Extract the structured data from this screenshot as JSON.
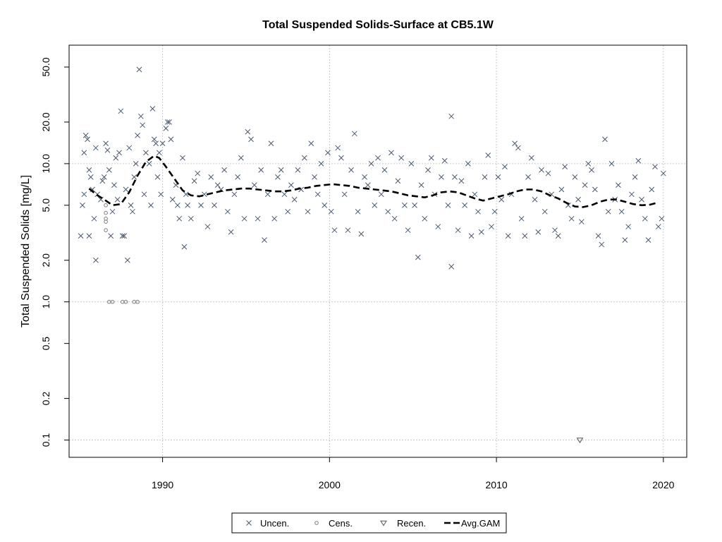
{
  "chart_data": {
    "type": "scatter",
    "title": "Total Suspended Solids-Surface at CB5.1W",
    "xlabel": "",
    "ylabel": "Total Suspended Solids [mg/L]",
    "xlim": [
      1984.4,
      2021.4
    ],
    "ylim": [
      0.075,
      72
    ],
    "y_scale": "log",
    "x_ticks": [
      1990,
      2000,
      2010,
      2020
    ],
    "x_tick_labels": [
      "1990",
      "2000",
      "2010",
      "2020"
    ],
    "y_ticks": [
      0.1,
      0.2,
      0.5,
      1.0,
      2.0,
      5.0,
      10.0,
      20.0,
      50.0
    ],
    "y_tick_labels": [
      "0.1",
      "0.2",
      "0.5",
      "1.0",
      "2.0",
      "5.0",
      "10.0",
      "20.0",
      "50.0"
    ],
    "grid": true,
    "legend_placement": "bottom-outside",
    "colors": {
      "uncen": "#4a5a6e",
      "cens": "#7a7a7a",
      "recen": "#555555",
      "gam": "#000000",
      "grid": "#c8c8c8"
    },
    "series": [
      {
        "name": "Uncen.",
        "marker": "x",
        "points": [
          [
            1985.1,
            3.0
          ],
          [
            1985.2,
            5.0
          ],
          [
            1985.3,
            6.0
          ],
          [
            1985.3,
            12.0
          ],
          [
            1985.4,
            16.0
          ],
          [
            1985.5,
            15.0
          ],
          [
            1985.6,
            3.0
          ],
          [
            1985.6,
            9.0
          ],
          [
            1985.7,
            8.0
          ],
          [
            1985.8,
            6.5
          ],
          [
            1985.9,
            4.0
          ],
          [
            1986.0,
            2.0
          ],
          [
            1986.0,
            13.0
          ],
          [
            1986.1,
            6.0
          ],
          [
            1986.3,
            5.5
          ],
          [
            1986.4,
            7.5
          ],
          [
            1986.5,
            8.0
          ],
          [
            1986.6,
            14.0
          ],
          [
            1986.7,
            12.5
          ],
          [
            1986.8,
            9.0
          ],
          [
            1986.9,
            3.0
          ],
          [
            1987.0,
            4.5
          ],
          [
            1987.1,
            7.0
          ],
          [
            1987.2,
            11.0
          ],
          [
            1987.3,
            5.5
          ],
          [
            1987.4,
            12.0
          ],
          [
            1987.5,
            24.0
          ],
          [
            1987.6,
            3.0
          ],
          [
            1987.7,
            3.0
          ],
          [
            1987.8,
            6.5
          ],
          [
            1987.9,
            2.0
          ],
          [
            1988.0,
            13.0
          ],
          [
            1988.1,
            5.0
          ],
          [
            1988.2,
            4.5
          ],
          [
            1988.3,
            8.0
          ],
          [
            1988.4,
            10.0
          ],
          [
            1988.5,
            16.0
          ],
          [
            1988.6,
            48.0
          ],
          [
            1988.7,
            22.0
          ],
          [
            1988.8,
            19.0
          ],
          [
            1988.9,
            6.0
          ],
          [
            1989.0,
            12.0
          ],
          [
            1989.2,
            10.0
          ],
          [
            1989.3,
            5.0
          ],
          [
            1989.4,
            25.0
          ],
          [
            1989.5,
            15.0
          ],
          [
            1989.6,
            14.0
          ],
          [
            1989.7,
            8.0
          ],
          [
            1989.8,
            12.0
          ],
          [
            1989.9,
            6.0
          ],
          [
            1990.0,
            14.0
          ],
          [
            1990.2,
            18.0
          ],
          [
            1990.3,
            20.0
          ],
          [
            1990.4,
            20.0
          ],
          [
            1990.5,
            15.0
          ],
          [
            1990.6,
            5.5
          ],
          [
            1990.8,
            7.0
          ],
          [
            1990.9,
            5.0
          ],
          [
            1991.0,
            4.0
          ],
          [
            1991.2,
            11.0
          ],
          [
            1991.3,
            2.5
          ],
          [
            1991.4,
            6.0
          ],
          [
            1991.5,
            5.0
          ],
          [
            1991.7,
            4.0
          ],
          [
            1991.9,
            7.5
          ],
          [
            1992.1,
            8.5
          ],
          [
            1992.3,
            5.0
          ],
          [
            1992.5,
            6.0
          ],
          [
            1992.7,
            3.5
          ],
          [
            1992.9,
            8.0
          ],
          [
            1993.1,
            5.0
          ],
          [
            1993.3,
            7.0
          ],
          [
            1993.5,
            6.5
          ],
          [
            1993.7,
            9.0
          ],
          [
            1993.9,
            4.5
          ],
          [
            1994.1,
            3.2
          ],
          [
            1994.3,
            6.0
          ],
          [
            1994.5,
            8.0
          ],
          [
            1994.7,
            11.0
          ],
          [
            1994.9,
            4.0
          ],
          [
            1995.1,
            17.0
          ],
          [
            1995.3,
            15.0
          ],
          [
            1995.5,
            7.0
          ],
          [
            1995.7,
            4.0
          ],
          [
            1995.9,
            9.0
          ],
          [
            1996.1,
            2.8
          ],
          [
            1996.3,
            6.0
          ],
          [
            1996.5,
            14.0
          ],
          [
            1996.7,
            4.0
          ],
          [
            1996.9,
            8.0
          ],
          [
            1997.1,
            9.0
          ],
          [
            1997.3,
            6.0
          ],
          [
            1997.5,
            4.5
          ],
          [
            1997.7,
            7.0
          ],
          [
            1997.9,
            5.5
          ],
          [
            1998.1,
            9.0
          ],
          [
            1998.3,
            6.5
          ],
          [
            1998.5,
            11.0
          ],
          [
            1998.7,
            4.5
          ],
          [
            1998.9,
            14.0
          ],
          [
            1999.1,
            8.0
          ],
          [
            1999.3,
            6.0
          ],
          [
            1999.5,
            10.0
          ],
          [
            1999.7,
            5.0
          ],
          [
            1999.9,
            12.0
          ],
          [
            2000.1,
            4.5
          ],
          [
            2000.3,
            3.3
          ],
          [
            2000.5,
            13.0
          ],
          [
            2000.7,
            11.0
          ],
          [
            2000.9,
            6.0
          ],
          [
            2001.1,
            3.3
          ],
          [
            2001.3,
            9.0
          ],
          [
            2001.5,
            16.5
          ],
          [
            2001.7,
            4.5
          ],
          [
            2001.9,
            3.1
          ],
          [
            2002.1,
            8.0
          ],
          [
            2002.3,
            7.0
          ],
          [
            2002.5,
            10.0
          ],
          [
            2002.7,
            5.0
          ],
          [
            2002.9,
            11.0
          ],
          [
            2003.1,
            6.0
          ],
          [
            2003.3,
            9.0
          ],
          [
            2003.5,
            4.5
          ],
          [
            2003.7,
            12.0
          ],
          [
            2003.9,
            4.0
          ],
          [
            2004.1,
            7.5
          ],
          [
            2004.3,
            11.0
          ],
          [
            2004.5,
            5.0
          ],
          [
            2004.7,
            3.3
          ],
          [
            2004.9,
            10.0
          ],
          [
            2005.1,
            5.0
          ],
          [
            2005.3,
            2.1
          ],
          [
            2005.5,
            7.0
          ],
          [
            2005.7,
            4.0
          ],
          [
            2005.9,
            9.0
          ],
          [
            2006.1,
            11.0
          ],
          [
            2006.3,
            6.0
          ],
          [
            2006.5,
            3.5
          ],
          [
            2006.7,
            8.0
          ],
          [
            2006.9,
            10.5
          ],
          [
            2007.1,
            5.0
          ],
          [
            2007.3,
            22.0
          ],
          [
            2007.3,
            1.8
          ],
          [
            2007.5,
            8.0
          ],
          [
            2007.7,
            3.3
          ],
          [
            2007.9,
            7.5
          ],
          [
            2008.1,
            5.0
          ],
          [
            2008.3,
            10.0
          ],
          [
            2008.5,
            3.0
          ],
          [
            2008.7,
            6.0
          ],
          [
            2008.9,
            4.5
          ],
          [
            2009.1,
            3.2
          ],
          [
            2009.3,
            8.0
          ],
          [
            2009.5,
            11.5
          ],
          [
            2009.7,
            3.5
          ],
          [
            2009.9,
            4.5
          ],
          [
            2010.1,
            8.0
          ],
          [
            2010.3,
            5.5
          ],
          [
            2010.5,
            9.5
          ],
          [
            2010.7,
            3.0
          ],
          [
            2010.9,
            6.0
          ],
          [
            2011.1,
            14.0
          ],
          [
            2011.3,
            13.0
          ],
          [
            2011.5,
            4.0
          ],
          [
            2011.7,
            3.0
          ],
          [
            2011.9,
            8.0
          ],
          [
            2012.1,
            11.0
          ],
          [
            2012.3,
            5.5
          ],
          [
            2012.5,
            3.2
          ],
          [
            2012.7,
            9.0
          ],
          [
            2012.9,
            4.5
          ],
          [
            2013.1,
            8.5
          ],
          [
            2013.3,
            6.0
          ],
          [
            2013.5,
            3.3
          ],
          [
            2013.7,
            3.0
          ],
          [
            2013.9,
            6.5
          ],
          [
            2014.1,
            9.5
          ],
          [
            2014.3,
            5.0
          ],
          [
            2014.5,
            4.0
          ],
          [
            2014.7,
            8.0
          ],
          [
            2014.9,
            5.5
          ],
          [
            2015.1,
            3.8
          ],
          [
            2015.3,
            7.0
          ],
          [
            2015.5,
            10.0
          ],
          [
            2015.7,
            9.0
          ],
          [
            2015.9,
            6.5
          ],
          [
            2016.1,
            3.0
          ],
          [
            2016.3,
            2.6
          ],
          [
            2016.5,
            15.0
          ],
          [
            2016.7,
            4.5
          ],
          [
            2016.9,
            10.0
          ],
          [
            2017.1,
            5.5
          ],
          [
            2017.3,
            7.0
          ],
          [
            2017.5,
            4.5
          ],
          [
            2017.7,
            2.8
          ],
          [
            2017.9,
            3.5
          ],
          [
            2018.1,
            6.0
          ],
          [
            2018.3,
            8.0
          ],
          [
            2018.5,
            10.5
          ],
          [
            2018.7,
            5.5
          ],
          [
            2018.9,
            4.0
          ],
          [
            2019.1,
            2.8
          ],
          [
            2019.3,
            6.5
          ],
          [
            2019.5,
            9.5
          ],
          [
            2019.7,
            3.5
          ],
          [
            2019.9,
            4.0
          ],
          [
            2020.0,
            8.5
          ]
        ]
      },
      {
        "name": "Cens.",
        "marker": "circle",
        "points": [
          [
            1986.6,
            5.0
          ],
          [
            1986.6,
            4.4
          ],
          [
            1986.6,
            3.8
          ],
          [
            1986.6,
            3.3
          ],
          [
            1986.6,
            4.0
          ],
          [
            1986.8,
            1.0
          ],
          [
            1987.0,
            1.0
          ],
          [
            1987.6,
            1.0
          ],
          [
            1987.8,
            1.0
          ],
          [
            1988.3,
            1.0
          ],
          [
            1988.5,
            1.0
          ]
        ]
      },
      {
        "name": "Recen.",
        "marker": "triangle-down",
        "points": [
          [
            2015.0,
            0.1
          ]
        ]
      },
      {
        "name": "Avg.GAM",
        "marker": "dashed-line",
        "points": [
          [
            1985.6,
            6.6
          ],
          [
            1986.0,
            6.0
          ],
          [
            1986.5,
            5.5
          ],
          [
            1987.0,
            5.0
          ],
          [
            1987.5,
            5.1
          ],
          [
            1988.0,
            6.2
          ],
          [
            1988.5,
            8.2
          ],
          [
            1989.0,
            10.3
          ],
          [
            1989.5,
            11.4
          ],
          [
            1989.8,
            11.0
          ],
          [
            1990.2,
            9.5
          ],
          [
            1990.7,
            7.8
          ],
          [
            1991.2,
            6.4
          ],
          [
            1991.7,
            5.9
          ],
          [
            1992.2,
            5.8
          ],
          [
            1992.7,
            6.0
          ],
          [
            1993.2,
            6.2
          ],
          [
            1993.7,
            6.4
          ],
          [
            1994.2,
            6.5
          ],
          [
            1994.7,
            6.6
          ],
          [
            1995.2,
            6.6
          ],
          [
            1995.7,
            6.5
          ],
          [
            1996.2,
            6.4
          ],
          [
            1996.7,
            6.3
          ],
          [
            1997.2,
            6.3
          ],
          [
            1997.7,
            6.4
          ],
          [
            1998.2,
            6.6
          ],
          [
            1998.7,
            6.7
          ],
          [
            1999.2,
            6.9
          ],
          [
            1999.7,
            7.0
          ],
          [
            2000.2,
            7.1
          ],
          [
            2000.7,
            7.0
          ],
          [
            2001.2,
            6.9
          ],
          [
            2001.7,
            6.7
          ],
          [
            2002.2,
            6.6
          ],
          [
            2002.7,
            6.5
          ],
          [
            2003.2,
            6.4
          ],
          [
            2003.7,
            6.3
          ],
          [
            2004.2,
            6.1
          ],
          [
            2004.7,
            5.9
          ],
          [
            2005.2,
            5.8
          ],
          [
            2005.7,
            5.7
          ],
          [
            2006.2,
            5.9
          ],
          [
            2006.7,
            6.2
          ],
          [
            2007.2,
            6.3
          ],
          [
            2007.7,
            6.2
          ],
          [
            2008.2,
            5.9
          ],
          [
            2008.7,
            5.6
          ],
          [
            2009.2,
            5.4
          ],
          [
            2009.7,
            5.6
          ],
          [
            2010.2,
            5.8
          ],
          [
            2010.7,
            6.0
          ],
          [
            2011.2,
            6.3
          ],
          [
            2011.7,
            6.5
          ],
          [
            2012.2,
            6.5
          ],
          [
            2012.7,
            6.3
          ],
          [
            2013.2,
            5.9
          ],
          [
            2013.7,
            5.6
          ],
          [
            2014.2,
            5.2
          ],
          [
            2014.7,
            4.9
          ],
          [
            2015.2,
            4.85
          ],
          [
            2015.7,
            5.0
          ],
          [
            2016.2,
            5.3
          ],
          [
            2016.7,
            5.5
          ],
          [
            2017.2,
            5.5
          ],
          [
            2017.7,
            5.3
          ],
          [
            2018.2,
            5.1
          ],
          [
            2018.7,
            5.0
          ],
          [
            2019.2,
            5.05
          ],
          [
            2019.6,
            5.2
          ]
        ]
      }
    ]
  }
}
